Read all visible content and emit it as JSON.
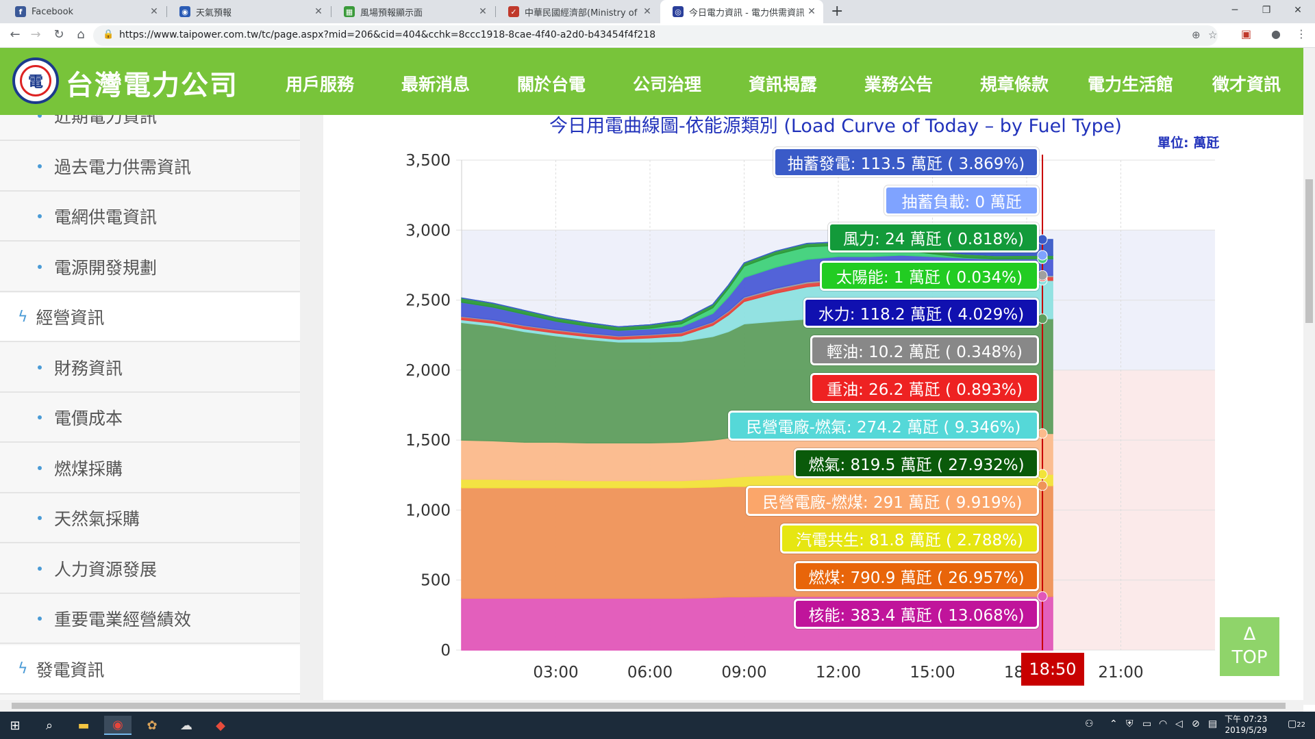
{
  "tabs": [
    {
      "label": "Facebook",
      "icon": "facebook-icon",
      "color": "#3b5998",
      "glyph": "f"
    },
    {
      "label": "天氣預報",
      "icon": "eye-icon",
      "color": "#2a5bb5",
      "glyph": "◉"
    },
    {
      "label": "風場預報顯示面",
      "icon": "map-icon",
      "color": "#3a9a3a",
      "glyph": "▦"
    },
    {
      "label": "中華民國經濟部(Ministry of Econ",
      "icon": "ministry-icon",
      "color": "#c0392b",
      "glyph": "✓"
    },
    {
      "label": "今日電力資訊 - 電力供需資訊 - 台",
      "icon": "taipower-icon",
      "color": "#2a3f9a",
      "glyph": "◎"
    }
  ],
  "url": "https://www.taipower.com.tw/tc/page.aspx?mid=206&cid=404&cchk=8ccc1918-8cae-4f40-a2d0-b43454f4f218",
  "site": {
    "name": "台灣電力公司",
    "nav": [
      "用戶服務",
      "最新消息",
      "關於台電",
      "公司治理",
      "資訊揭露",
      "業務公告",
      "規章條款",
      "電力生活館",
      "徵才資訊"
    ]
  },
  "sidebar": {
    "items": [
      {
        "label": "近期電力資訊",
        "level": 2
      },
      {
        "label": "過去電力供需資訊",
        "level": 2
      },
      {
        "label": "電網供電資訊",
        "level": 2
      },
      {
        "label": "電源開發規劃",
        "level": 2
      },
      {
        "label": "經營資訊",
        "level": 1
      },
      {
        "label": "財務資訊",
        "level": 2
      },
      {
        "label": "電價成本",
        "level": 2
      },
      {
        "label": "燃煤採購",
        "level": 2
      },
      {
        "label": "天然氣採購",
        "level": 2
      },
      {
        "label": "人力資源發展",
        "level": 2
      },
      {
        "label": "重要電業經營績效",
        "level": 2
      },
      {
        "label": "發電資訊",
        "level": 1
      }
    ]
  },
  "chart_title": "今日用電曲線圖-依能源類別 (Load Curve of Today – by Fuel Type)",
  "unit_label": "單位: 萬瓩",
  "cursor_time": "18:50",
  "top_button": {
    "arrow": "Δ",
    "label": "TOP"
  },
  "chart_data": {
    "type": "area",
    "stacked": true,
    "ylim": [
      0,
      3500
    ],
    "yticks": [
      0,
      500,
      1000,
      1500,
      2000,
      2500,
      3000,
      3500
    ],
    "xlim": [
      0,
      24
    ],
    "xticks": [
      {
        "h": 3,
        "label": "03:00"
      },
      {
        "h": 6,
        "label": "06:00"
      },
      {
        "h": 9,
        "label": "09:00"
      },
      {
        "h": 12,
        "label": "12:00"
      },
      {
        "h": 15,
        "label": "15:00"
      },
      {
        "h": 18,
        "label": "18:00"
      },
      {
        "h": 21,
        "label": "21:00"
      }
    ],
    "x": [
      0,
      1,
      2,
      3,
      4,
      5,
      6,
      7,
      8,
      8.5,
      9,
      10,
      11,
      12,
      13,
      14,
      15,
      16,
      17,
      18,
      18.83
    ],
    "series": [
      {
        "name": "核能",
        "color": "#e157b9",
        "values": [
          370,
          370,
          370,
          370,
          370,
          370,
          370,
          370,
          375,
          380,
          380,
          383,
          383,
          383,
          383,
          383,
          383,
          383,
          383,
          383,
          383
        ]
      },
      {
        "name": "燃煤",
        "color": "#ef9458",
        "values": [
          790,
          790,
          790,
          790,
          790,
          790,
          790,
          790,
          790,
          790,
          790,
          791,
          791,
          791,
          791,
          791,
          791,
          791,
          791,
          791,
          791
        ]
      },
      {
        "name": "汽電共生",
        "color": "#f2e33a",
        "values": [
          60,
          60,
          55,
          55,
          50,
          50,
          50,
          50,
          55,
          60,
          70,
          75,
          80,
          80,
          80,
          80,
          80,
          80,
          80,
          82,
          82
        ]
      },
      {
        "name": "民營電廠-燃煤",
        "color": "#fbbb8c",
        "values": [
          280,
          275,
          270,
          270,
          270,
          270,
          270,
          275,
          280,
          285,
          290,
          290,
          291,
          291,
          291,
          291,
          291,
          291,
          291,
          291,
          291
        ]
      },
      {
        "name": "燃氣",
        "color": "#5e9e5e",
        "values": [
          840,
          820,
          790,
          760,
          740,
          720,
          720,
          720,
          740,
          760,
          800,
          810,
          820,
          820,
          820,
          820,
          820,
          820,
          820,
          820,
          820
        ]
      },
      {
        "name": "民營電廠-燃氣",
        "color": "#8de0e0",
        "values": [
          20,
          20,
          20,
          20,
          20,
          20,
          30,
          40,
          80,
          120,
          160,
          200,
          230,
          250,
          260,
          270,
          270,
          270,
          272,
          274,
          274
        ]
      },
      {
        "name": "重油",
        "color": "#e5453e",
        "values": [
          20,
          20,
          20,
          20,
          20,
          20,
          20,
          20,
          20,
          22,
          24,
          26,
          26,
          26,
          26,
          26,
          26,
          26,
          26,
          26,
          26
        ]
      },
      {
        "name": "輕油",
        "color": "#a0a0a0",
        "values": [
          5,
          5,
          5,
          5,
          5,
          5,
          5,
          5,
          5,
          6,
          8,
          10,
          10,
          10,
          10,
          10,
          10,
          10,
          10,
          10,
          10
        ]
      },
      {
        "name": "水力",
        "color": "#4a5bd6",
        "values": [
          100,
          90,
          80,
          60,
          50,
          40,
          40,
          40,
          60,
          100,
          140,
          150,
          160,
          160,
          150,
          150,
          140,
          130,
          120,
          118,
          118
        ]
      },
      {
        "name": "太陽能",
        "color": "#3fd17a",
        "values": [
          0,
          0,
          0,
          0,
          0,
          0,
          5,
          20,
          40,
          60,
          80,
          90,
          90,
          80,
          60,
          40,
          20,
          5,
          1,
          1,
          1
        ]
      },
      {
        "name": "風力",
        "color": "#2c9a3a",
        "values": [
          30,
          28,
          26,
          25,
          24,
          24,
          24,
          24,
          24,
          24,
          24,
          24,
          24,
          24,
          24,
          24,
          24,
          24,
          24,
          24,
          24
        ]
      },
      {
        "name": "抽蓄負載",
        "color": "#7fa3ff",
        "values": [
          0,
          0,
          0,
          0,
          0,
          0,
          0,
          0,
          0,
          0,
          0,
          0,
          0,
          0,
          0,
          0,
          0,
          0,
          0,
          0,
          0
        ]
      },
      {
        "name": "抽蓄發電",
        "color": "#3a5bc8",
        "values": [
          0,
          0,
          0,
          0,
          0,
          0,
          0,
          0,
          0,
          0,
          0,
          0,
          0,
          0,
          0,
          20,
          60,
          80,
          100,
          113,
          113
        ]
      }
    ],
    "tooltips": [
      {
        "text": "抽蓄發電: 113.5 萬瓩 ( 3.869%)",
        "bg": "#3a5bc8",
        "fg": "#ffffff"
      },
      {
        "text": "抽蓄負載: 0 萬瓩",
        "bg": "#7fa3ff",
        "fg": "#ffffff"
      },
      {
        "text": "風力: 24 萬瓩 ( 0.818%)",
        "bg": "#139a3a",
        "fg": "#ffffff"
      },
      {
        "text": "太陽能: 1 萬瓩 ( 0.034%)",
        "bg": "#22cc22",
        "fg": "#ffffff"
      },
      {
        "text": "水力: 118.2 萬瓩 ( 4.029%)",
        "bg": "#1010b0",
        "fg": "#ffffff"
      },
      {
        "text": "輕油: 10.2 萬瓩 ( 0.348%)",
        "bg": "#888888",
        "fg": "#ffffff"
      },
      {
        "text": "重油: 26.2 萬瓩 ( 0.893%)",
        "bg": "#ee2222",
        "fg": "#ffffff"
      },
      {
        "text": "民營電廠-燃氣: 274.2 萬瓩 ( 9.346%)",
        "bg": "#55d8d8",
        "fg": "#ffffff"
      },
      {
        "text": "燃氣: 819.5 萬瓩 ( 27.932%)",
        "bg": "#0a5a0a",
        "fg": "#ffffff"
      },
      {
        "text": "民營電廠-燃煤: 291 萬瓩 ( 9.919%)",
        "bg": "#fba66a",
        "fg": "#ffffff"
      },
      {
        "text": "汽電共生: 81.8 萬瓩 ( 2.788%)",
        "bg": "#e6e612",
        "fg": "#ffffff"
      },
      {
        "text": "燃煤: 790.9 萬瓩 ( 26.957%)",
        "bg": "#e8650a",
        "fg": "#ffffff"
      },
      {
        "text": "核能: 383.4 萬瓩 ( 13.068%)",
        "bg": "#c0149b",
        "fg": "#ffffff"
      }
    ]
  },
  "taskbar": {
    "time": "下午 07:23",
    "date": "2019/5/29",
    "notifications": "22"
  }
}
